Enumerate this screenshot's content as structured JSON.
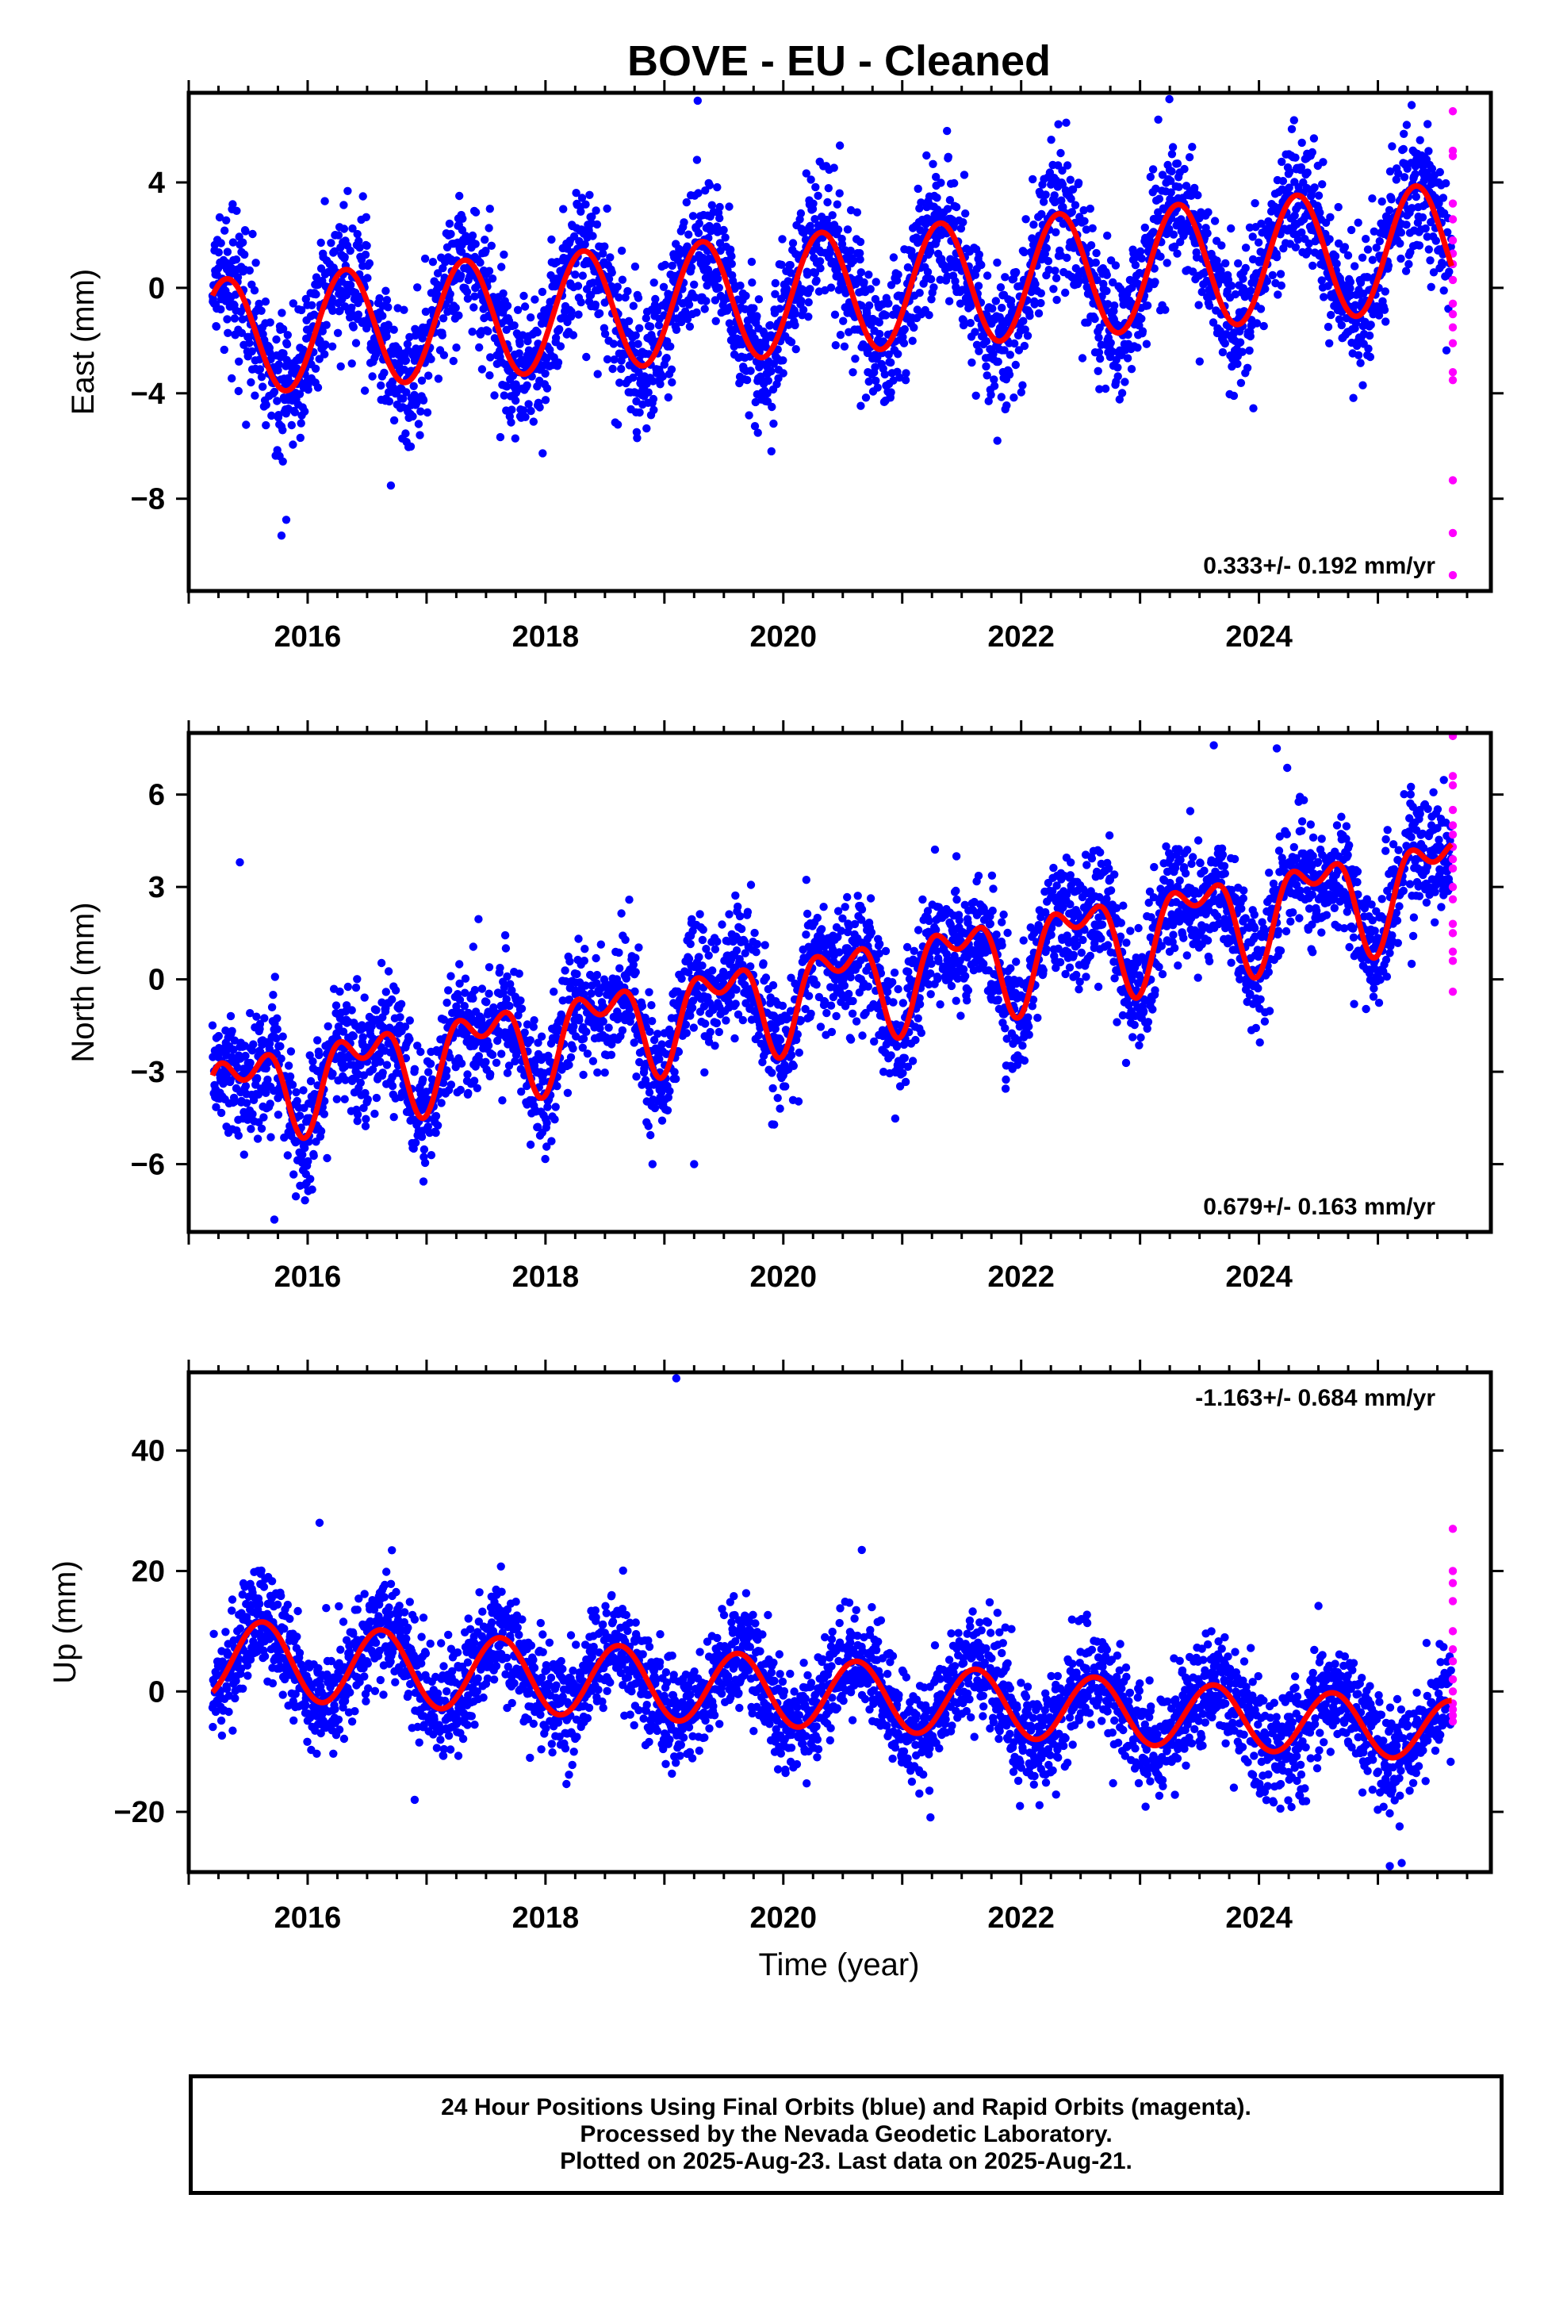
{
  "title": "BOVE  - EU - Cleaned",
  "x_axis_label": "Time (year)",
  "footer": {
    "line1": "24 Hour Positions Using Final Orbits (blue) and Rapid Orbits (magenta).",
    "line2": "Processed by the Nevada Geodetic Laboratory.",
    "line3": "Plotted on 2025-Aug-23. Last data on 2025-Aug-21."
  },
  "colors": {
    "final_orbits": "#0000ff",
    "rapid_orbits": "#ff00ff",
    "model_fit": "#ff0000",
    "frame": "#000000"
  },
  "chart_data": [
    {
      "type": "scatter",
      "panel": "east",
      "ylabel": "East (mm)",
      "rate_label": "0.333+/- 0.192 mm/yr",
      "xlim": [
        2015.0,
        2025.95
      ],
      "ylim": [
        -11.5,
        7.4
      ],
      "xticks": [
        2016,
        2018,
        2020,
        2022,
        2024
      ],
      "xtick_labels": [
        "2016",
        "2018",
        "2020",
        "2022",
        "2024"
      ],
      "yticks": [
        4,
        0,
        -4,
        -8
      ],
      "ytick_labels": [
        "4",
        "0",
        "−4",
        "−8"
      ],
      "fit": {
        "start": 2015.2,
        "end": 2025.62,
        "rate": 0.333,
        "amp_start": 2.2,
        "amp_end": 2.4,
        "phase_peak": 0.32,
        "offset_2020": -0.3,
        "semi_amp": 0
      },
      "scatter_sigma": 1.3,
      "outliers": [
        [
          2015.78,
          -9.4
        ],
        [
          2015.82,
          -8.8
        ],
        [
          2019.28,
          7.1
        ],
        [
          2016.7,
          -7.5
        ],
        [
          2019.9,
          -6.2
        ],
        [
          2021.8,
          -5.8
        ]
      ],
      "rapid_orbits": {
        "x": 2025.63,
        "values": [
          6.7,
          5.2,
          5.0,
          3.2,
          2.6,
          1.8,
          1.3,
          0.9,
          0.3,
          -0.6,
          -1.0,
          -1.5,
          -2.1,
          -3.2,
          -3.5,
          -7.3,
          -9.3,
          -10.9
        ]
      }
    },
    {
      "type": "scatter",
      "panel": "north",
      "ylabel": "North (mm)",
      "rate_label": "0.679+/- 0.163 mm/yr",
      "xlim": [
        2015.0,
        2025.95
      ],
      "ylim": [
        -8.2,
        8.0
      ],
      "xticks": [
        2016,
        2018,
        2020,
        2022,
        2024
      ],
      "xtick_labels": [
        "2016",
        "2018",
        "2020",
        "2022",
        "2024"
      ],
      "yticks": [
        6,
        3,
        0,
        -3,
        -6
      ],
      "ytick_labels": [
        "6",
        "3",
        "0",
        "−3",
        "−6"
      ],
      "fit": {
        "start": 2015.2,
        "end": 2025.62,
        "rate": 0.679,
        "amp_start": 1.1,
        "amp_end": 1.4,
        "phase_peak": 0.47,
        "offset_2020": -0.5,
        "semi_amp": 0.8
      },
      "scatter_sigma": 1.0,
      "outliers": [
        [
          2015.72,
          -7.8
        ],
        [
          2015.43,
          3.8
        ],
        [
          2023.62,
          7.6
        ],
        [
          2024.15,
          7.5
        ],
        [
          2019.25,
          -6.0
        ],
        [
          2018.9,
          -6.0
        ],
        [
          2024.8,
          -0.8
        ]
      ],
      "rapid_orbits": {
        "x": 2025.63,
        "values": [
          7.9,
          6.6,
          6.3,
          5.5,
          5.0,
          4.7,
          4.3,
          3.9,
          3.6,
          3.0,
          2.6,
          1.8,
          1.5,
          0.9,
          0.6,
          -0.4
        ]
      }
    },
    {
      "type": "scatter",
      "panel": "up",
      "ylabel": "Up (mm)",
      "rate_label": "-1.163+/- 0.684 mm/yr",
      "xlim": [
        2015.0,
        2025.95
      ],
      "ylim": [
        -30,
        53
      ],
      "xticks": [
        2016,
        2018,
        2020,
        2022,
        2024
      ],
      "xtick_labels": [
        "2016",
        "2018",
        "2020",
        "2022",
        "2024"
      ],
      "yticks": [
        40,
        20,
        0,
        -20
      ],
      "ytick_labels": [
        "40",
        "20",
        "0",
        "−20"
      ],
      "fit": {
        "start": 2015.2,
        "end": 2025.62,
        "rate": -1.163,
        "amp_start": 6.5,
        "amp_end": 5.0,
        "phase_peak": 0.62,
        "offset_2020": 0.0,
        "semi_amp": 0
      },
      "scatter_sigma": 4.5,
      "outliers": [
        [
          2019.1,
          52.0
        ],
        [
          2016.1,
          28.0
        ],
        [
          2020.66,
          23.5
        ],
        [
          2025.1,
          -29.0
        ],
        [
          2025.2,
          -28.5
        ],
        [
          2016.9,
          -18.0
        ]
      ],
      "rapid_orbits": {
        "x": 2025.63,
        "values": [
          27.0,
          20.0,
          18.0,
          15.0,
          10.0,
          7.0,
          5.0,
          2.0,
          0.0,
          -2.0,
          -3.0,
          -4.0,
          -5.0
        ]
      }
    }
  ]
}
